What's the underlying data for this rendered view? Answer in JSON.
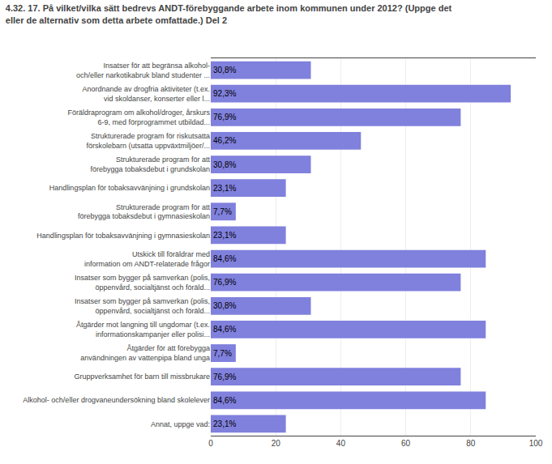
{
  "chart_data": {
    "type": "bar",
    "orientation": "horizontal",
    "title": "4.32. 17. På vilket/vilka sätt bedrevs ANDT-förebyggande arbete inom kommunen under 2012? (Uppge det\neller de alternativ som detta arbete omfattade.) Del 2",
    "categories": [
      "Insatser för att begränsa alkohol-\noch/eller narkotikabruk bland studenter ...",
      "Anordnande av drogfria aktiviteter (t.ex.\nvid skoldanser, konserter eller l...",
      "Föräldraprogram om alkohol/droger, årskurs\n6-9, med förprogrammet utbildad...",
      "Strukturerade program för riskutsatta\nförskolebarn (utsatta uppväxtmiljöer/...",
      "Strukturerade program för att\nförebygga tobaksdebut i grundskolan",
      "Handlingsplan för tobaksavvänjning i grundskolan",
      "Strukturerade program för att\nförebygga tobaksdebut i gymnasieskolan",
      "Handlingsplan för tobaksavvänjning i gymnasieskolan",
      "Utskick till föräldrar med\ninformation om ANDT-relaterade frågor",
      "Insatser som bygger på samverkan (polis,\nöppenvård, socialtjänst och föräld...",
      "Insatser som bygger på samverkan (polis,\nöppenvård, socialtjänst och föräld...",
      "Åtgärder mot langning till ungdomar (t.ex.\ninformationskampanjer eller polisi...",
      "Åtgärder för att förebygga\nanvändningen av vattenpipa bland unga",
      "Gruppverksamhet för barn till missbrukare",
      "Alkohol- och/eller drogvaneundersökning bland skolelever",
      "Annat, uppge vad:"
    ],
    "values": [
      30.8,
      92.3,
      76.9,
      46.2,
      30.8,
      23.1,
      7.7,
      23.1,
      84.6,
      76.9,
      30.8,
      84.6,
      7.7,
      76.9,
      84.6,
      23.1
    ],
    "value_labels": [
      "30,8%",
      "92,3%",
      "76,9%",
      "46,2%",
      "30,8%",
      "23,1%",
      "7,7%",
      "23,1%",
      "84,6%",
      "76,9%",
      "30,8%",
      "84,6%",
      "7,7%",
      "76,9%",
      "84,6%",
      "23,1%"
    ],
    "data_labels": true,
    "color": "#8080dd",
    "xlim": [
      0,
      100
    ],
    "xticks": [
      0,
      20,
      40,
      60,
      80,
      100
    ],
    "grid": true
  }
}
